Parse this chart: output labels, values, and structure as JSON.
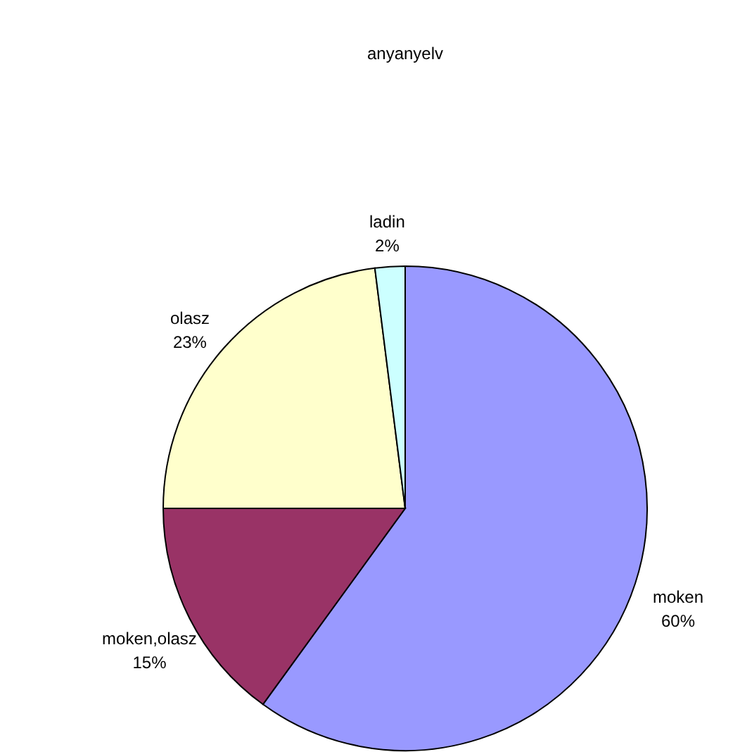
{
  "chart_data": {
    "type": "pie",
    "title": "anyanyelv",
    "categories": [
      "moken",
      "moken,olasz",
      "olasz",
      "ladin"
    ],
    "values": [
      60,
      15,
      23,
      2
    ],
    "value_labels": [
      "60%",
      "15%",
      "23%",
      "2%"
    ],
    "colors": [
      "#9999ff",
      "#993366",
      "#ffffcc",
      "#ccffff"
    ]
  }
}
